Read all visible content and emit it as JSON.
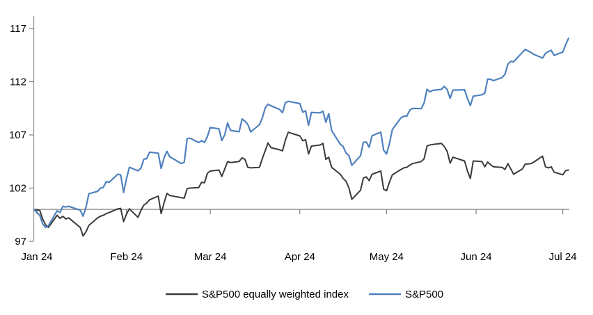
{
  "chart_data": {
    "type": "line",
    "title": "",
    "grid": false,
    "legend_position": "bottom",
    "x": {
      "tick_labels": [
        "Jan 24",
        "Feb 24",
        "Mar 24",
        "Apr 24",
        "May 24",
        "Jun 24",
        "Jul 24"
      ],
      "tick_dates": [
        "2024-01-01",
        "2024-02-01",
        "2024-03-01",
        "2024-04-01",
        "2024-05-01",
        "2024-06-01",
        "2024-07-01"
      ]
    },
    "y": {
      "ticks": [
        97,
        102,
        107,
        112,
        117
      ],
      "min": 97,
      "max": 118.2,
      "axis_cross": 100
    },
    "colors": {
      "axis_line": "#999999",
      "tick_mark": "#7f7f7f",
      "label_text": "#000000",
      "background": "#ffffff"
    },
    "dates": [
      "2023-12-31",
      "2024-01-02",
      "2024-01-03",
      "2024-01-04",
      "2024-01-05",
      "2024-01-08",
      "2024-01-09",
      "2024-01-10",
      "2024-01-11",
      "2024-01-12",
      "2024-01-16",
      "2024-01-17",
      "2024-01-18",
      "2024-01-19",
      "2024-01-22",
      "2024-01-23",
      "2024-01-24",
      "2024-01-25",
      "2024-01-26",
      "2024-01-29",
      "2024-01-30",
      "2024-01-31",
      "2024-02-01",
      "2024-02-02",
      "2024-02-05",
      "2024-02-06",
      "2024-02-07",
      "2024-02-08",
      "2024-02-09",
      "2024-02-12",
      "2024-02-13",
      "2024-02-14",
      "2024-02-15",
      "2024-02-16",
      "2024-02-20",
      "2024-02-21",
      "2024-02-22",
      "2024-02-23",
      "2024-02-26",
      "2024-02-27",
      "2024-02-28",
      "2024-02-29",
      "2024-03-01",
      "2024-03-04",
      "2024-03-05",
      "2024-03-06",
      "2024-03-07",
      "2024-03-08",
      "2024-03-11",
      "2024-03-12",
      "2024-03-13",
      "2024-03-14",
      "2024-03-15",
      "2024-03-18",
      "2024-03-19",
      "2024-03-20",
      "2024-03-21",
      "2024-03-22",
      "2024-03-25",
      "2024-03-26",
      "2024-03-27",
      "2024-03-28",
      "2024-04-01",
      "2024-04-02",
      "2024-04-03",
      "2024-04-04",
      "2024-04-05",
      "2024-04-08",
      "2024-04-09",
      "2024-04-10",
      "2024-04-11",
      "2024-04-12",
      "2024-04-15",
      "2024-04-16",
      "2024-04-17",
      "2024-04-18",
      "2024-04-19",
      "2024-04-22",
      "2024-04-23",
      "2024-04-24",
      "2024-04-25",
      "2024-04-26",
      "2024-04-29",
      "2024-04-30",
      "2024-05-01",
      "2024-05-02",
      "2024-05-03",
      "2024-05-06",
      "2024-05-07",
      "2024-05-08",
      "2024-05-09",
      "2024-05-10",
      "2024-05-13",
      "2024-05-14",
      "2024-05-15",
      "2024-05-16",
      "2024-05-17",
      "2024-05-20",
      "2024-05-21",
      "2024-05-22",
      "2024-05-23",
      "2024-05-24",
      "2024-05-28",
      "2024-05-29",
      "2024-05-30",
      "2024-05-31",
      "2024-06-03",
      "2024-06-04",
      "2024-06-05",
      "2024-06-06",
      "2024-06-07",
      "2024-06-10",
      "2024-06-11",
      "2024-06-12",
      "2024-06-13",
      "2024-06-14",
      "2024-06-17",
      "2024-06-18",
      "2024-06-20",
      "2024-06-21",
      "2024-06-24",
      "2024-06-25",
      "2024-06-26",
      "2024-06-27",
      "2024-06-28",
      "2024-07-01",
      "2024-07-02",
      "2024-07-03"
    ],
    "series": [
      {
        "name": "S&P500 equally weighted index",
        "color": "#3a3a3a",
        "stroke_width": 2,
        "values": [
          100,
          99.9,
          99.1,
          98.55,
          98.3,
          99.45,
          99.15,
          99.35,
          99.1,
          99.2,
          98.3,
          97.5,
          97.9,
          98.5,
          99.2,
          99.35,
          99.45,
          99.6,
          99.7,
          100.05,
          100.1,
          98.85,
          99.55,
          100.05,
          99.25,
          99.9,
          100.4,
          100.6,
          100.9,
          101.25,
          99.6,
          100.6,
          101.5,
          101.3,
          101.1,
          101.05,
          101.95,
          102.0,
          102.05,
          102.55,
          102.5,
          103.4,
          103.6,
          103.7,
          103.1,
          103.8,
          104.5,
          104.4,
          104.5,
          104.85,
          104.7,
          103.95,
          103.9,
          103.95,
          104.75,
          105.5,
          106.25,
          105.8,
          105.6,
          105.5,
          106.5,
          107.25,
          106.9,
          106.45,
          106.55,
          105.2,
          105.95,
          106.05,
          106.2,
          104.7,
          104.9,
          103.95,
          103.3,
          102.9,
          102.65,
          102.0,
          100.95,
          101.8,
          102.95,
          103.05,
          102.7,
          103.3,
          103.6,
          101.9,
          101.75,
          102.55,
          103.25,
          103.75,
          103.9,
          103.95,
          104.15,
          104.3,
          104.5,
          104.75,
          105.95,
          106.05,
          106.1,
          106.2,
          105.9,
          105.45,
          104.35,
          104.9,
          104.55,
          103.6,
          102.9,
          104.55,
          104.5,
          104.0,
          104.45,
          104.2,
          104.0,
          103.95,
          103.75,
          104.3,
          103.8,
          103.3,
          103.8,
          104.25,
          104.3,
          104.45,
          105.0,
          104.0,
          103.9,
          104.0,
          103.5,
          103.25,
          103.65,
          103.7
        ]
      },
      {
        "name": "S&P500",
        "color": "#4F81BD",
        "stroke_width": 2.2,
        "values": [
          100,
          99.43,
          98.64,
          98.3,
          98.48,
          99.87,
          99.72,
          100.29,
          100.22,
          100.29,
          99.92,
          99.36,
          100.23,
          101.47,
          101.69,
          101.99,
          102.07,
          102.61,
          102.54,
          103.31,
          103.25,
          101.59,
          102.86,
          103.96,
          103.63,
          103.87,
          104.72,
          104.78,
          105.38,
          105.28,
          103.84,
          104.84,
          105.45,
          104.94,
          104.31,
          104.44,
          106.65,
          106.69,
          106.28,
          106.46,
          106.29,
          106.84,
          107.7,
          107.57,
          106.47,
          107.02,
          108.13,
          107.42,
          107.3,
          108.5,
          108.29,
          107.98,
          107.28,
          107.96,
          108.57,
          109.53,
          109.89,
          109.73,
          109.4,
          109.09,
          110.03,
          110.16,
          109.94,
          109.14,
          109.26,
          107.91,
          109.11,
          109.07,
          109.23,
          108.19,
          109.0,
          107.41,
          106.12,
          105.9,
          105.29,
          105.06,
          104.14,
          105.05,
          106.3,
          106.33,
          105.84,
          106.92,
          107.26,
          105.57,
          105.21,
          106.17,
          107.5,
          108.61,
          108.76,
          108.76,
          109.31,
          109.49,
          109.47,
          110.0,
          111.29,
          111.05,
          111.18,
          111.28,
          111.56,
          111.26,
          110.44,
          111.21,
          111.24,
          110.42,
          109.76,
          110.64,
          110.77,
          110.93,
          112.25,
          112.23,
          112.1,
          112.39,
          112.7,
          113.65,
          113.92,
          113.87,
          114.75,
          115.04,
          114.74,
          114.57,
          114.22,
          114.66,
          114.84,
          114.95,
          114.48,
          114.79,
          115.5,
          116.08
        ]
      }
    ]
  }
}
